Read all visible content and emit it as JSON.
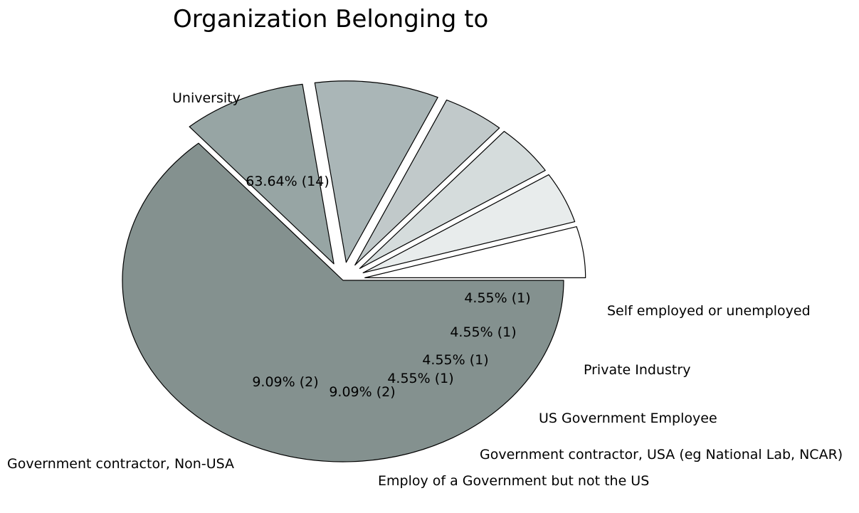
{
  "chart_data": {
    "type": "pie",
    "title": "Organization Belonging to",
    "start_angle_deg": 0,
    "direction": "clockwise",
    "slices": [
      {
        "label": "University",
        "value": 14,
        "pct_label": "63.64%  (14)",
        "color": "#84918f",
        "exploded": false
      },
      {
        "label": "Government contractor, Non-USA",
        "value": 2,
        "pct_label": "9.09%  (2)",
        "color": "#97a5a4",
        "exploded": true
      },
      {
        "label": "Employ of a Government but not the US",
        "value": 2,
        "pct_label": "9.09%  (2)",
        "color": "#aab6b7",
        "exploded": true
      },
      {
        "label": "Government contractor, USA (eg National Lab, NCAR)",
        "value": 1,
        "pct_label": "4.55%  (1)",
        "color": "#c1c9ca",
        "exploded": true
      },
      {
        "label": "US Government Employee",
        "value": 1,
        "pct_label": "4.55%  (1)",
        "color": "#d5dcdc",
        "exploded": true
      },
      {
        "label": "Private Industry",
        "value": 1,
        "pct_label": "4.55%  (1)",
        "color": "#e8ecec",
        "exploded": true
      },
      {
        "label": "Self employed or unemployed",
        "value": 1,
        "pct_label": "4.55%  (1)",
        "color": "#ffffff",
        "exploded": true
      }
    ]
  }
}
